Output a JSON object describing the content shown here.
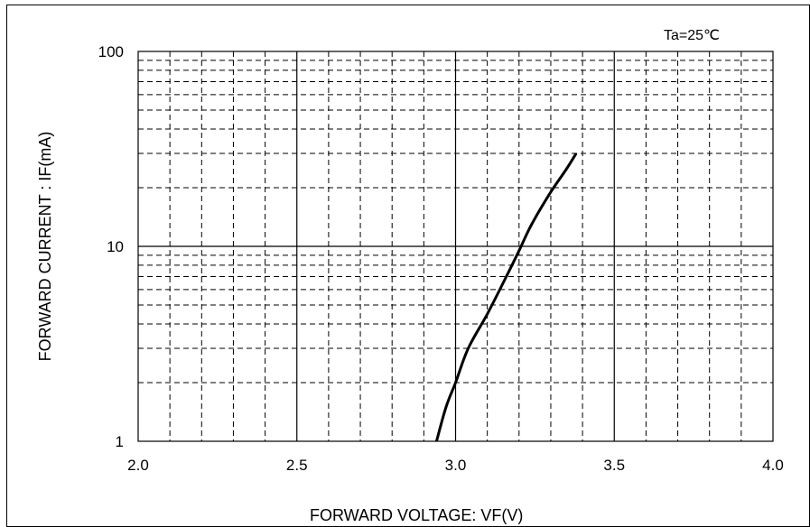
{
  "chart_data": {
    "type": "line",
    "title": "",
    "annotation": "Ta=25℃",
    "xlabel": "FORWARD VOLTAGE: VF(V)",
    "ylabel": "FORWARD CURRENT : IF(mA)",
    "xlim": [
      2.0,
      4.0
    ],
    "ylim": [
      1,
      100
    ],
    "yscale": "log",
    "grid": true,
    "x_ticks": [
      "2.0",
      "2.5",
      "3.0",
      "3.5",
      "4.0"
    ],
    "y_ticks": [
      "1",
      "10",
      "100"
    ],
    "series": [
      {
        "x": [
          2.94,
          2.97,
          3.0,
          3.04,
          3.1,
          3.16,
          3.2,
          3.24,
          3.3,
          3.35,
          3.38
        ],
        "y": [
          1.0,
          1.5,
          2.0,
          3.0,
          4.5,
          7.0,
          9.5,
          13.0,
          19.0,
          25.0,
          30.0
        ]
      }
    ]
  }
}
